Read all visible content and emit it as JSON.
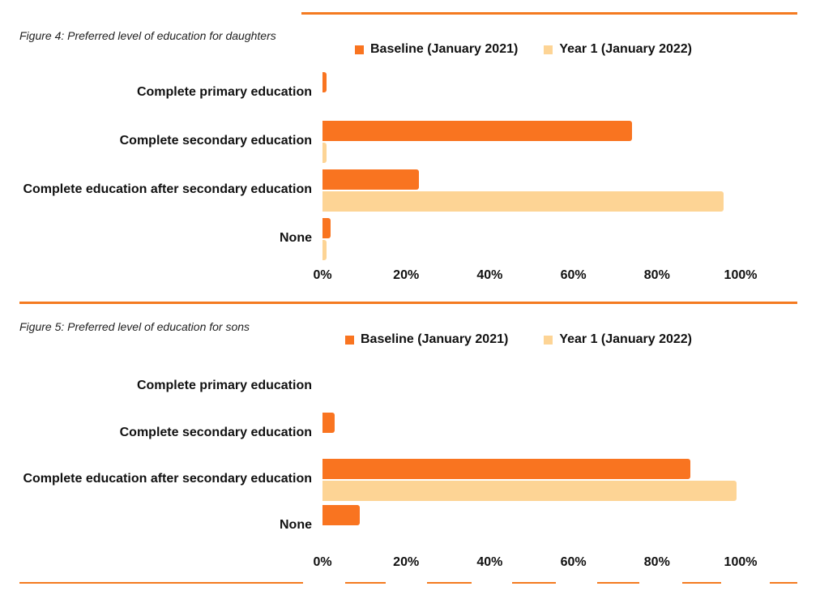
{
  "colors": {
    "baseline": "#f97420",
    "year1": "#fdd495",
    "rule": "#f47a20"
  },
  "chart_data": [
    {
      "type": "bar",
      "orientation": "horizontal",
      "title": "Figure 4: Preferred level of education for daughters",
      "categories": [
        "Complete primary education",
        "Complete secondary education",
        "Complete education after secondary education",
        "None"
      ],
      "series": [
        {
          "name": "Baseline (January 2021)",
          "values": [
            1,
            74,
            23,
            2
          ]
        },
        {
          "name": "Year 1 (January 2022)",
          "values": [
            0,
            1,
            96,
            1
          ]
        }
      ],
      "xticks": [
        "0%",
        "20%",
        "40%",
        "60%",
        "80%",
        "100%"
      ],
      "xlim": [
        0,
        100
      ],
      "legend": "top"
    },
    {
      "type": "bar",
      "orientation": "horizontal",
      "title": "Figure 5: Preferred level of education for sons",
      "categories": [
        "Complete primary education",
        "Complete secondary education",
        "Complete education after secondary education",
        "None"
      ],
      "series": [
        {
          "name": "Baseline (January 2021)",
          "values": [
            0,
            3,
            88,
            9
          ]
        },
        {
          "name": "Year 1 (January 2022)",
          "values": [
            0,
            0,
            99,
            0
          ]
        }
      ],
      "xticks": [
        "0%",
        "20%",
        "40%",
        "60%",
        "80%",
        "100%"
      ],
      "xlim": [
        0,
        100
      ],
      "legend": "top"
    }
  ]
}
